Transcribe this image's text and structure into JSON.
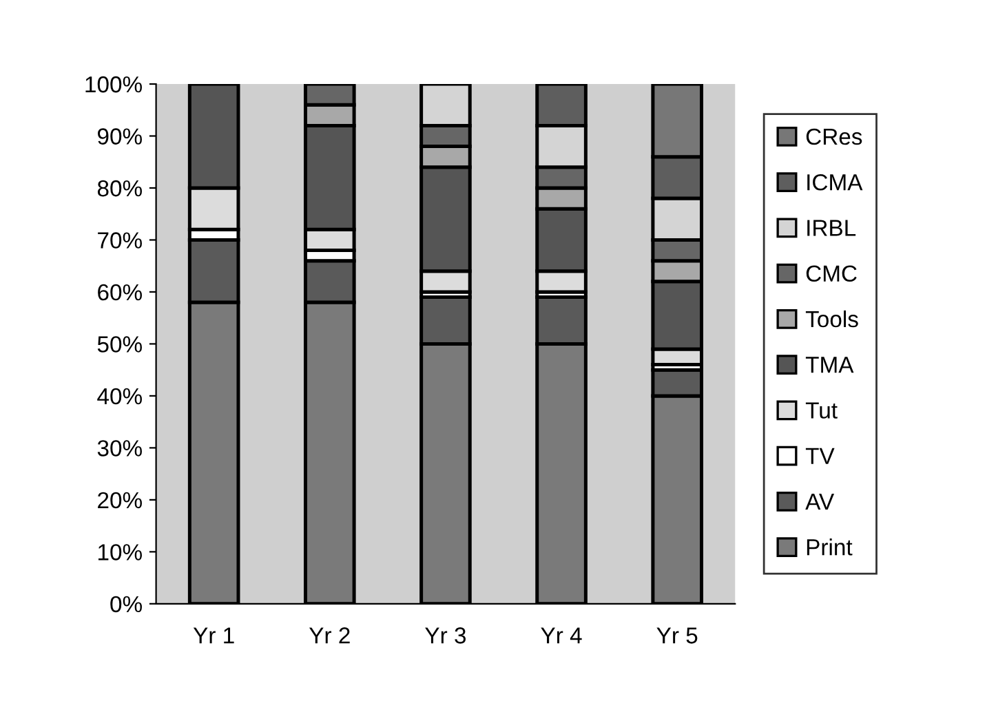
{
  "chart_data": {
    "type": "bar",
    "stacked": true,
    "categories": [
      "Yr 1",
      "Yr 2",
      "Yr 3",
      "Yr 4",
      "Yr 5"
    ],
    "series": [
      {
        "name": "Print",
        "color": "#7a7a7a",
        "values": [
          58,
          58,
          50,
          50,
          40
        ]
      },
      {
        "name": "AV",
        "color": "#5a5a5a",
        "values": [
          12,
          8,
          9,
          9,
          5
        ]
      },
      {
        "name": "TV",
        "color": "#ffffff",
        "values": [
          2,
          2,
          1,
          1,
          1
        ]
      },
      {
        "name": "Tut",
        "color": "#dcdcdc",
        "values": [
          8,
          4,
          4,
          4,
          3
        ]
      },
      {
        "name": "TMA",
        "color": "#555555",
        "values": [
          20,
          20,
          20,
          12,
          13
        ]
      },
      {
        "name": "Tools",
        "color": "#a8a8a8",
        "values": [
          0,
          4,
          4,
          4,
          4
        ]
      },
      {
        "name": "CMC",
        "color": "#666666",
        "values": [
          0,
          4,
          4,
          4,
          4
        ]
      },
      {
        "name": "IRBL",
        "color": "#d4d4d4",
        "values": [
          0,
          0,
          8,
          8,
          8
        ]
      },
      {
        "name": "ICMA",
        "color": "#5e5e5e",
        "values": [
          0,
          0,
          0,
          8,
          8
        ]
      },
      {
        "name": "CRes",
        "color": "#777777",
        "values": [
          0,
          0,
          0,
          0,
          14
        ]
      }
    ],
    "ylim": [
      0,
      100
    ],
    "yticks": [
      {
        "value": 0,
        "label": "0%"
      },
      {
        "value": 10,
        "label": "10%"
      },
      {
        "value": 20,
        "label": "20%"
      },
      {
        "value": 30,
        "label": "30%"
      },
      {
        "value": 40,
        "label": "40%"
      },
      {
        "value": 50,
        "label": "50%"
      },
      {
        "value": 60,
        "label": "60%"
      },
      {
        "value": 70,
        "label": "70%"
      },
      {
        "value": 80,
        "label": "80%"
      },
      {
        "value": 90,
        "label": "90%"
      },
      {
        "value": 100,
        "label": "100%"
      }
    ],
    "legend": "right",
    "grid": false
  }
}
